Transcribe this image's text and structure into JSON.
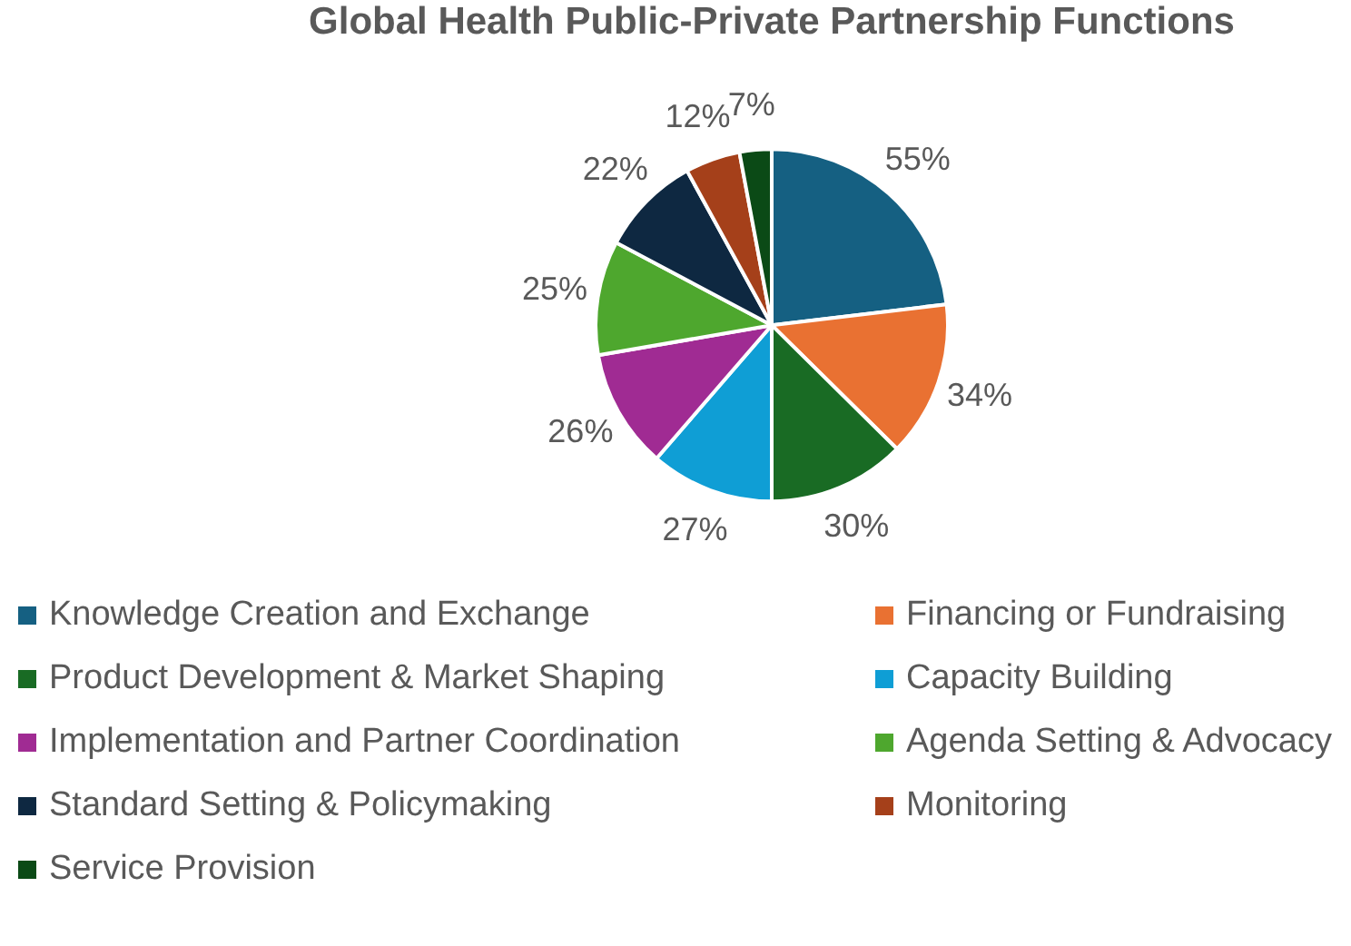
{
  "chart_data": {
    "type": "pie",
    "title": "Global Health Public-Private Partnership Functions",
    "categories": [
      "Knowledge Creation and Exchange",
      "Financing or Fundraising",
      "Product Development & Market Shaping",
      "Capacity Building",
      "Implementation and Partner Coordination",
      "Agenda Setting & Advocacy",
      "Standard Setting & Policymaking",
      "Monitoring",
      "Service Provision"
    ],
    "values": [
      55,
      34,
      30,
      27,
      26,
      25,
      22,
      12,
      7
    ],
    "value_labels": [
      "55%",
      "34%",
      "30%",
      "27%",
      "26%",
      "25%",
      "22%",
      "12%",
      "7%"
    ],
    "colors": [
      "#156082",
      "#e97132",
      "#196b24",
      "#0f9ed5",
      "#a02b93",
      "#4ea72e",
      "#0e2841",
      "#a5401a",
      "#0b4a16"
    ],
    "legend": "bottom"
  }
}
